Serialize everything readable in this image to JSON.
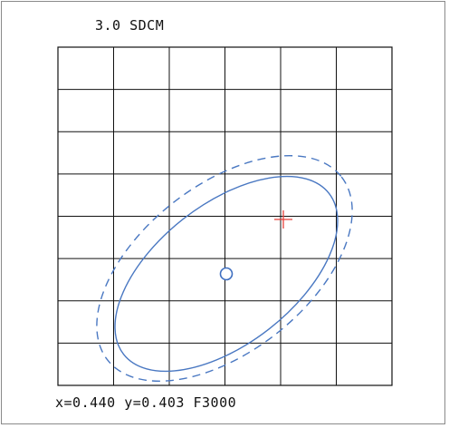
{
  "title": "3.0 SDCM",
  "readout": "x=0.440 y=0.403 F3000",
  "colors": {
    "grid": "#111111",
    "ellipse": "#4a78c2",
    "target_marker": "#e8413a",
    "point_marker": "#3f6fc0"
  },
  "grid": {
    "columns": 6,
    "rows": 8
  },
  "icons": {
    "target": "plus-cross",
    "measured_point": "circle"
  }
}
